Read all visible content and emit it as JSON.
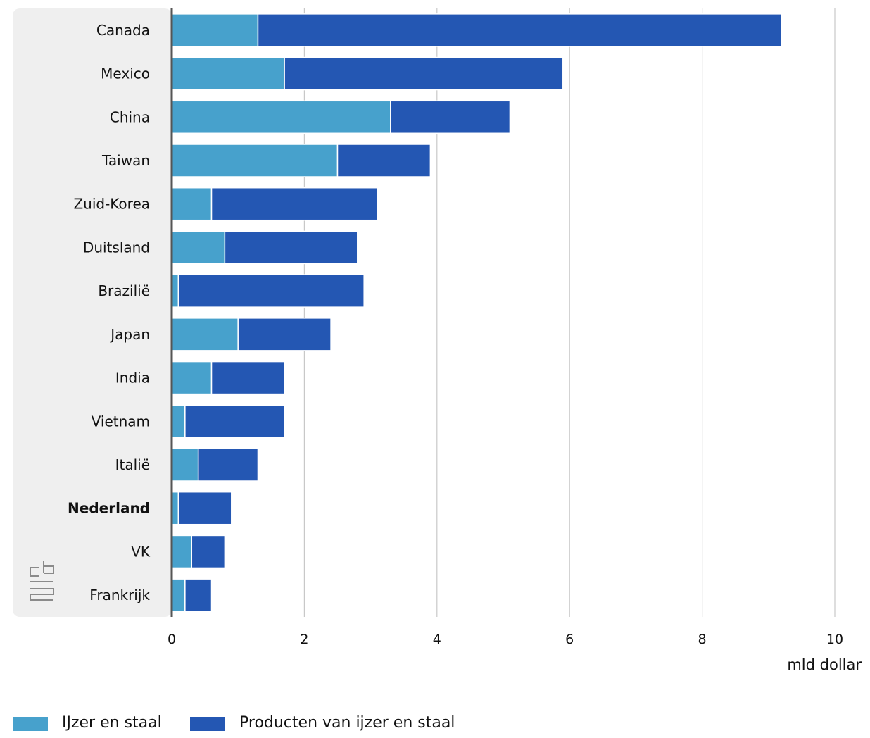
{
  "chart_data": {
    "type": "bar",
    "orientation": "horizontal",
    "stacked": true,
    "categories": [
      "Canada",
      "Mexico",
      "China",
      "Taiwan",
      "Zuid-Korea",
      "Duitsland",
      "Brazilië",
      "Japan",
      "India",
      "Vietnam",
      "Italië",
      "Nederland",
      "VK",
      "Frankrijk"
    ],
    "highlighted_category": "Nederland",
    "series": [
      {
        "name": "IJzer en staal",
        "color": "#47a1cc",
        "values": [
          1.3,
          1.7,
          3.3,
          2.5,
          0.6,
          0.8,
          0.1,
          1.0,
          0.6,
          0.2,
          0.4,
          0.1,
          0.3,
          0.2
        ]
      },
      {
        "name": "Producten van ijzer en staal",
        "color": "#2457b3",
        "values": [
          7.9,
          4.2,
          1.8,
          1.4,
          2.5,
          2.0,
          2.8,
          1.4,
          1.1,
          1.5,
          0.9,
          0.8,
          0.5,
          0.4
        ]
      }
    ],
    "xlim": [
      0,
      10
    ],
    "xticks": [
      "0",
      "2",
      "4",
      "6",
      "8",
      "10"
    ],
    "xlabel": "mld dollar",
    "grid": true,
    "legend_position": "bottom-left",
    "label_panel_color": "#efefef",
    "grid_color": "#c8c8c8",
    "axis_color": "#555555"
  },
  "logo": {
    "name": "cbs-logo-icon",
    "text": "cbs"
  }
}
